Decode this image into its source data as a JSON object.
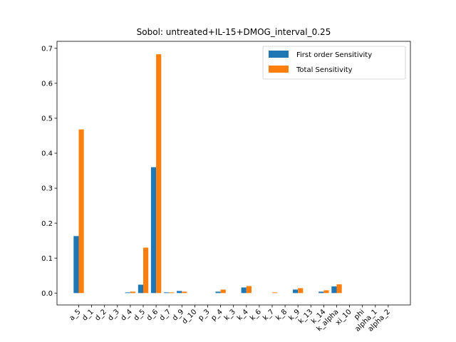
{
  "chart_data": {
    "type": "bar",
    "title": "Sobol: untreated+IL-15+DMOG_interval_0.25",
    "xlabel": "",
    "ylabel": "",
    "ylim": [
      -0.034,
      0.72
    ],
    "yticks": [
      0.0,
      0.1,
      0.2,
      0.3,
      0.4,
      0.5,
      0.6,
      0.7
    ],
    "ytick_labels": [
      "0.0",
      "0.1",
      "0.2",
      "0.3",
      "0.4",
      "0.5",
      "0.6",
      "0.7"
    ],
    "grid": false,
    "legend_position": "top-right",
    "categories": [
      "a_5",
      "d_1",
      "d_2",
      "d_3",
      "d_4",
      "d_5",
      "d_6",
      "d_7",
      "d_9",
      "d_10",
      "p_3",
      "p_4",
      "k_3",
      "k_4",
      "k_6",
      "k_7",
      "k_8",
      "k_9",
      "k_13",
      "k_14",
      "k_alpha",
      "xi_10",
      "phi",
      "alpha_1",
      "alpha_2"
    ],
    "series": [
      {
        "name": "First order Sensitivity",
        "color": "#1f77b4",
        "values": [
          0.163,
          0.0,
          0.0,
          0.0,
          0.002,
          0.024,
          0.36,
          0.002,
          0.006,
          0.0,
          0.0,
          0.004,
          0.0,
          0.016,
          0.0,
          0.0,
          0.0,
          0.01,
          0.0,
          0.004,
          0.019,
          0.0,
          0.0,
          0.0,
          0.0
        ]
      },
      {
        "name": "Total Sensitivity",
        "color": "#ff7f0e",
        "values": [
          0.468,
          0.0,
          0.0,
          0.0,
          0.004,
          0.13,
          0.683,
          0.002,
          0.004,
          0.0,
          0.0,
          0.01,
          0.0,
          0.02,
          0.0,
          0.002,
          0.0,
          0.014,
          0.0,
          0.008,
          0.025,
          0.0,
          0.0,
          0.0,
          0.0
        ]
      }
    ]
  }
}
